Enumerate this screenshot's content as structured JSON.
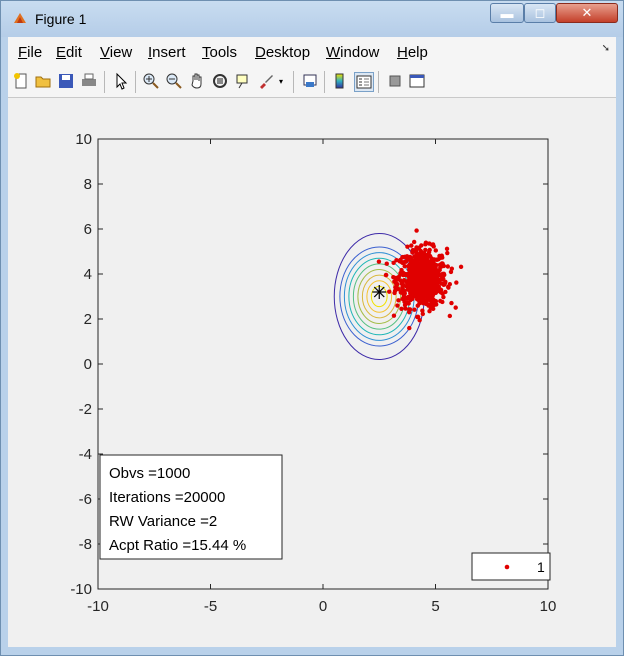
{
  "window": {
    "title": "Figure 1",
    "minimize_label": "▬",
    "maximize_label": "◻",
    "close_label": "✕"
  },
  "menu": {
    "items": [
      {
        "label": "File",
        "hotkey": "F",
        "rest": "ile"
      },
      {
        "label": "Edit",
        "hotkey": "E",
        "rest": "dit"
      },
      {
        "label": "View",
        "hotkey": "V",
        "rest": "iew"
      },
      {
        "label": "Insert",
        "hotkey": "I",
        "rest": "nsert"
      },
      {
        "label": "Tools",
        "hotkey": "T",
        "rest": "ools"
      },
      {
        "label": "Desktop",
        "hotkey": "D",
        "rest": "esktop"
      },
      {
        "label": "Window",
        "hotkey": "W",
        "rest": "indow"
      },
      {
        "label": "Help",
        "hotkey": "H",
        "rest": "elp"
      }
    ]
  },
  "toolbar": {
    "icons": [
      "new-figure-icon",
      "open-file-icon",
      "save-icon",
      "print-icon",
      "pointer-icon",
      "zoom-in-icon",
      "zoom-out-icon",
      "pan-icon",
      "rotate-3d-icon",
      "data-cursor-icon",
      "brush-icon",
      "link-plot-icon",
      "colorbar-icon",
      "legend-icon",
      "hide-plot-tools-icon",
      "show-plot-tools-icon"
    ]
  },
  "textbox": {
    "lines": [
      "Obvs =1000",
      "Iterations =20000",
      "RW Variance =2",
      "Acpt Ratio =15.44 %"
    ]
  },
  "chart_data": {
    "type": "scatter",
    "xlim": [
      -10,
      10
    ],
    "ylim": [
      -10,
      10
    ],
    "xticks": [
      -10,
      -5,
      0,
      5,
      10
    ],
    "yticks": [
      -10,
      -8,
      -6,
      -4,
      -2,
      0,
      2,
      4,
      6,
      8,
      10
    ],
    "grid": false,
    "legend": {
      "entries": [
        "1"
      ],
      "location": "bottom-right"
    },
    "contours": {
      "center": [
        2.5,
        3.0
      ],
      "radii_x": [
        0.35,
        0.55,
        0.75,
        0.95,
        1.15,
        1.35,
        1.55,
        1.75,
        2.0
      ],
      "radii_y": [
        0.45,
        0.7,
        0.95,
        1.2,
        1.45,
        1.7,
        1.95,
        2.2,
        2.8
      ],
      "colors": [
        "#f2e200",
        "#f6c22f",
        "#d9b83c",
        "#a5bd48",
        "#55bf80",
        "#1db6b6",
        "#2f8fd4",
        "#3a5fcf",
        "#3d2aa8"
      ]
    },
    "true_mean_marker": [
      2.5,
      3.2
    ],
    "scatter": {
      "color": "#e00000",
      "center": [
        4.4,
        3.8
      ],
      "spread": [
        0.55,
        0.65
      ],
      "count": 700,
      "x_range": [
        2.2,
        6.2
      ],
      "y_range": [
        1.3,
        6.2
      ]
    }
  }
}
